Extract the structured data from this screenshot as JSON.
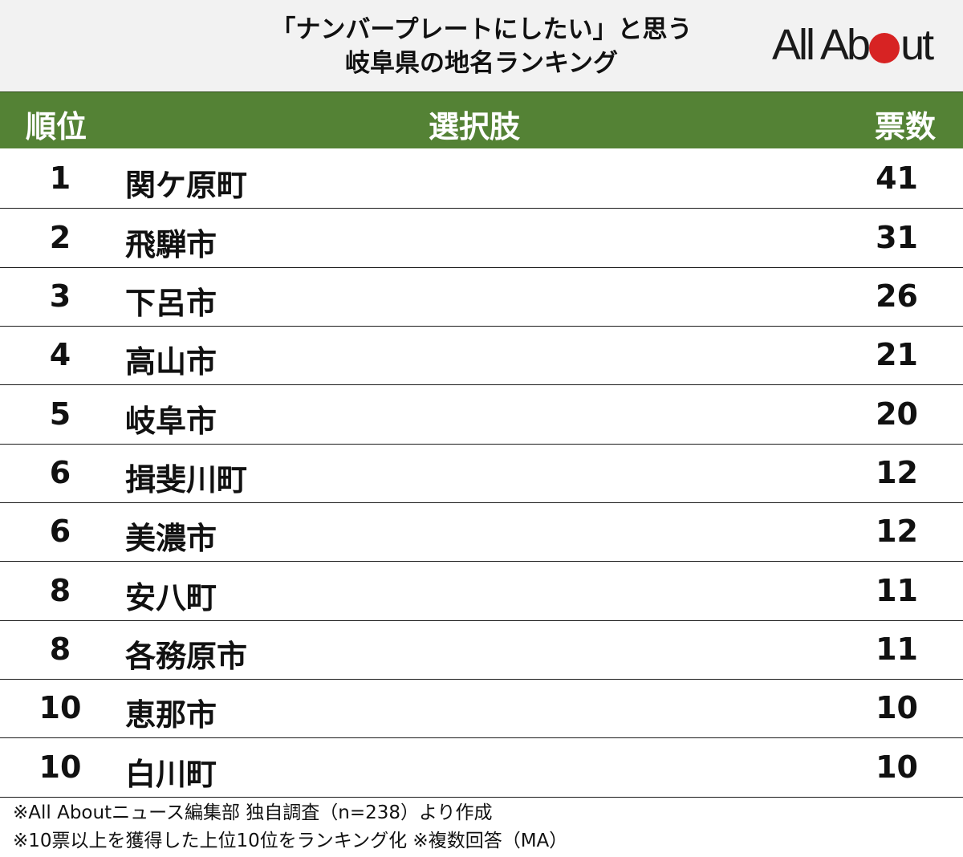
{
  "header": {
    "title_line1": "「ナンバープレートにしたい」と思う",
    "title_line2": "岐阜県の地名ランキング",
    "logo": {
      "text_left": "All Ab",
      "text_right": "ut",
      "dot_color": "#d72323"
    }
  },
  "table": {
    "header_bg": "#548235",
    "columns": {
      "rank": "順位",
      "choice": "選択肢",
      "votes": "票数"
    },
    "rows": [
      {
        "rank": "1",
        "name": "関ケ原町",
        "votes": "41"
      },
      {
        "rank": "2",
        "name": "飛騨市",
        "votes": "31"
      },
      {
        "rank": "3",
        "name": "下呂市",
        "votes": "26"
      },
      {
        "rank": "4",
        "name": "高山市",
        "votes": "21"
      },
      {
        "rank": "5",
        "name": "岐阜市",
        "votes": "20"
      },
      {
        "rank": "6",
        "name": "揖斐川町",
        "votes": "12"
      },
      {
        "rank": "6",
        "name": "美濃市",
        "votes": "12"
      },
      {
        "rank": "8",
        "name": "安八町",
        "votes": "11"
      },
      {
        "rank": "8",
        "name": "各務原市",
        "votes": "11"
      },
      {
        "rank": "10",
        "name": "恵那市",
        "votes": "10"
      },
      {
        "rank": "10",
        "name": "白川町",
        "votes": "10"
      }
    ]
  },
  "notes": {
    "line1": "※All Aboutニュース編集部 独自調査（n=238）より作成",
    "line2": "※10票以上を獲得した上位10位をランキング化 ※複数回答（MA）"
  },
  "chart_data": {
    "type": "table",
    "title": "「ナンバープレートにしたい」と思う岐阜県の地名ランキング",
    "columns": [
      "順位",
      "選択肢",
      "票数"
    ],
    "categories": [
      "関ケ原町",
      "飛騨市",
      "下呂市",
      "高山市",
      "岐阜市",
      "揖斐川町",
      "美濃市",
      "安八町",
      "各務原市",
      "恵那市",
      "白川町"
    ],
    "ranks": [
      1,
      2,
      3,
      4,
      5,
      6,
      6,
      8,
      8,
      10,
      10
    ],
    "values": [
      41,
      31,
      26,
      21,
      20,
      12,
      12,
      11,
      11,
      10,
      10
    ],
    "notes": [
      "※All Aboutニュース編集部 独自調査（n=238）より作成",
      "※10票以上を獲得した上位10位をランキング化 ※複数回答（MA）"
    ]
  }
}
